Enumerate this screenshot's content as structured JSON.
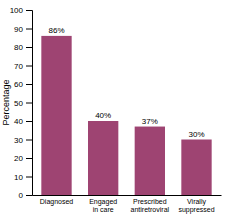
{
  "chart_data": {
    "type": "bar",
    "categories": [
      "Diagnosed",
      "Engaged\nin care",
      "Prescribed\nantiretroviral",
      "Virally\nsuppressed"
    ],
    "values": [
      86,
      40,
      37,
      30
    ],
    "value_labels": [
      "86%",
      "40%",
      "37%",
      "30%"
    ],
    "data_labels": true,
    "color": "#9e4472",
    "ylabel": "Percentage",
    "ylim": [
      0,
      100
    ],
    "yticks": [
      0,
      10,
      20,
      30,
      40,
      50,
      60,
      70,
      80,
      90,
      100
    ],
    "grid": false
  }
}
